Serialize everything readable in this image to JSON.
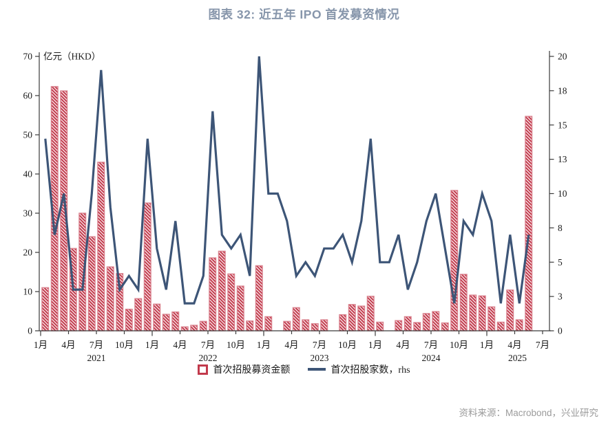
{
  "title": "图表 32: 近五年 IPO 首发募资情况",
  "source": "资料来源：Macrobond，兴业研究",
  "legend": {
    "bar_label": "首次招股募资金额",
    "line_label": "首次招股家数，rhs"
  },
  "colors": {
    "title": "#8796ab",
    "line": "#3d5577",
    "bar_stripe": "#c23a4c",
    "bar_border": "#d9818d",
    "axis": "#3a3a3a",
    "tick_text": "#1a1a1a",
    "source_text": "#9b9b9b"
  },
  "chart_data": {
    "type": "bar",
    "title": "图表 32: 近五年 IPO 首发募资情况",
    "x": [
      "2021-01",
      "2021-02",
      "2021-03",
      "2021-04",
      "2021-05",
      "2021-06",
      "2021-07",
      "2021-08",
      "2021-09",
      "2021-10",
      "2021-11",
      "2021-12",
      "2022-01",
      "2022-02",
      "2022-03",
      "2022-04",
      "2022-05",
      "2022-06",
      "2022-07",
      "2022-08",
      "2022-09",
      "2022-10",
      "2022-11",
      "2022-12",
      "2023-01",
      "2023-02",
      "2023-03",
      "2023-04",
      "2023-05",
      "2023-06",
      "2023-07",
      "2023-08",
      "2023-09",
      "2023-10",
      "2023-11",
      "2023-12",
      "2024-01",
      "2024-02",
      "2024-03",
      "2024-04",
      "2024-05",
      "2024-06",
      "2024-07",
      "2024-08",
      "2024-09",
      "2024-10",
      "2024-11",
      "2024-12",
      "2025-01",
      "2025-02",
      "2025-03",
      "2025-04",
      "2025-05"
    ],
    "series": [
      {
        "name": "首次招股募资金额",
        "type": "bar",
        "axis": "left",
        "values": [
          11,
          62.3,
          61.2,
          21,
          30,
          24,
          43,
          16.3,
          14.6,
          5.5,
          8.2,
          32.6,
          6.8,
          4.2,
          4.8,
          1.0,
          1.4,
          2.4,
          18.6,
          20.3,
          14.5,
          11.4,
          2.5,
          16.6,
          3.6,
          0,
          2.4,
          5.9,
          2.8,
          1.8,
          2.8,
          0,
          4.1,
          6.7,
          6.3,
          8.8,
          2.2,
          0,
          2.6,
          3.6,
          2.1,
          4.4,
          4.9,
          2.0,
          35.8,
          14.4,
          9.1,
          8.9,
          6.1,
          2.2,
          10.4,
          2.8,
          54.7
        ]
      },
      {
        "name": "首次招股家数，rhs",
        "type": "line",
        "axis": "right",
        "values": [
          14,
          7,
          10,
          3,
          3,
          10,
          19,
          9,
          3,
          4,
          3,
          14,
          6,
          3,
          8,
          2,
          2,
          4,
          16,
          7,
          6,
          7,
          4,
          20,
          10,
          10,
          8,
          4,
          5,
          4,
          6,
          6,
          7,
          5,
          8,
          14,
          5,
          5,
          7,
          3,
          5,
          8,
          10,
          6,
          2,
          8,
          7,
          10,
          8,
          2,
          7,
          2,
          7
        ]
      }
    ],
    "left_axis": {
      "title": "亿元（HKD）",
      "min": 0,
      "max": 70,
      "ticks": [
        {
          "pos": 0,
          "label": "0"
        },
        {
          "pos": 10,
          "label": "10"
        },
        {
          "pos": 20,
          "label": "20"
        },
        {
          "pos": 30,
          "label": "30"
        },
        {
          "pos": 40,
          "label": "40"
        },
        {
          "pos": 50,
          "label": "50"
        },
        {
          "pos": 60,
          "label": "60"
        },
        {
          "pos": 70,
          "label": "70"
        }
      ]
    },
    "right_axis": {
      "min": 0,
      "max": 20,
      "ticks": [
        {
          "pos": 0,
          "label": "0"
        },
        {
          "pos": 2.5,
          "label": "3"
        },
        {
          "pos": 5,
          "label": "5"
        },
        {
          "pos": 7.5,
          "label": "8"
        },
        {
          "pos": 10,
          "label": "10"
        },
        {
          "pos": 12.5,
          "label": "13"
        },
        {
          "pos": 15,
          "label": "15"
        },
        {
          "pos": 17.5,
          "label": "18"
        },
        {
          "pos": 20,
          "label": "20"
        }
      ]
    },
    "x_ticks": [
      {
        "month_index": 0,
        "label": "1月"
      },
      {
        "month_index": 3,
        "label": "4月"
      },
      {
        "month_index": 6,
        "label": "7月"
      },
      {
        "month_index": 9,
        "label": "10月"
      },
      {
        "month_index": 12,
        "label": "1月"
      },
      {
        "month_index": 15,
        "label": "4月"
      },
      {
        "month_index": 18,
        "label": "7月"
      },
      {
        "month_index": 21,
        "label": "10月"
      },
      {
        "month_index": 24,
        "label": "1月"
      },
      {
        "month_index": 27,
        "label": "4月"
      },
      {
        "month_index": 30,
        "label": "7月"
      },
      {
        "month_index": 33,
        "label": "10月"
      },
      {
        "month_index": 36,
        "label": "1月"
      },
      {
        "month_index": 39,
        "label": "4月"
      },
      {
        "month_index": 42,
        "label": "7月"
      },
      {
        "month_index": 45,
        "label": "10月"
      },
      {
        "month_index": 48,
        "label": "1月"
      },
      {
        "month_index": 51,
        "label": "4月"
      },
      {
        "month_index": 54,
        "label": "7月"
      }
    ],
    "year_labels": [
      {
        "label": "2021",
        "pos": 6
      },
      {
        "label": "2022",
        "pos": 18
      },
      {
        "label": "2023",
        "pos": 30
      },
      {
        "label": "2024",
        "pos": 42
      },
      {
        "label": "2025",
        "pos": 51.3
      }
    ],
    "grid": false,
    "legend_position": "bottom"
  }
}
